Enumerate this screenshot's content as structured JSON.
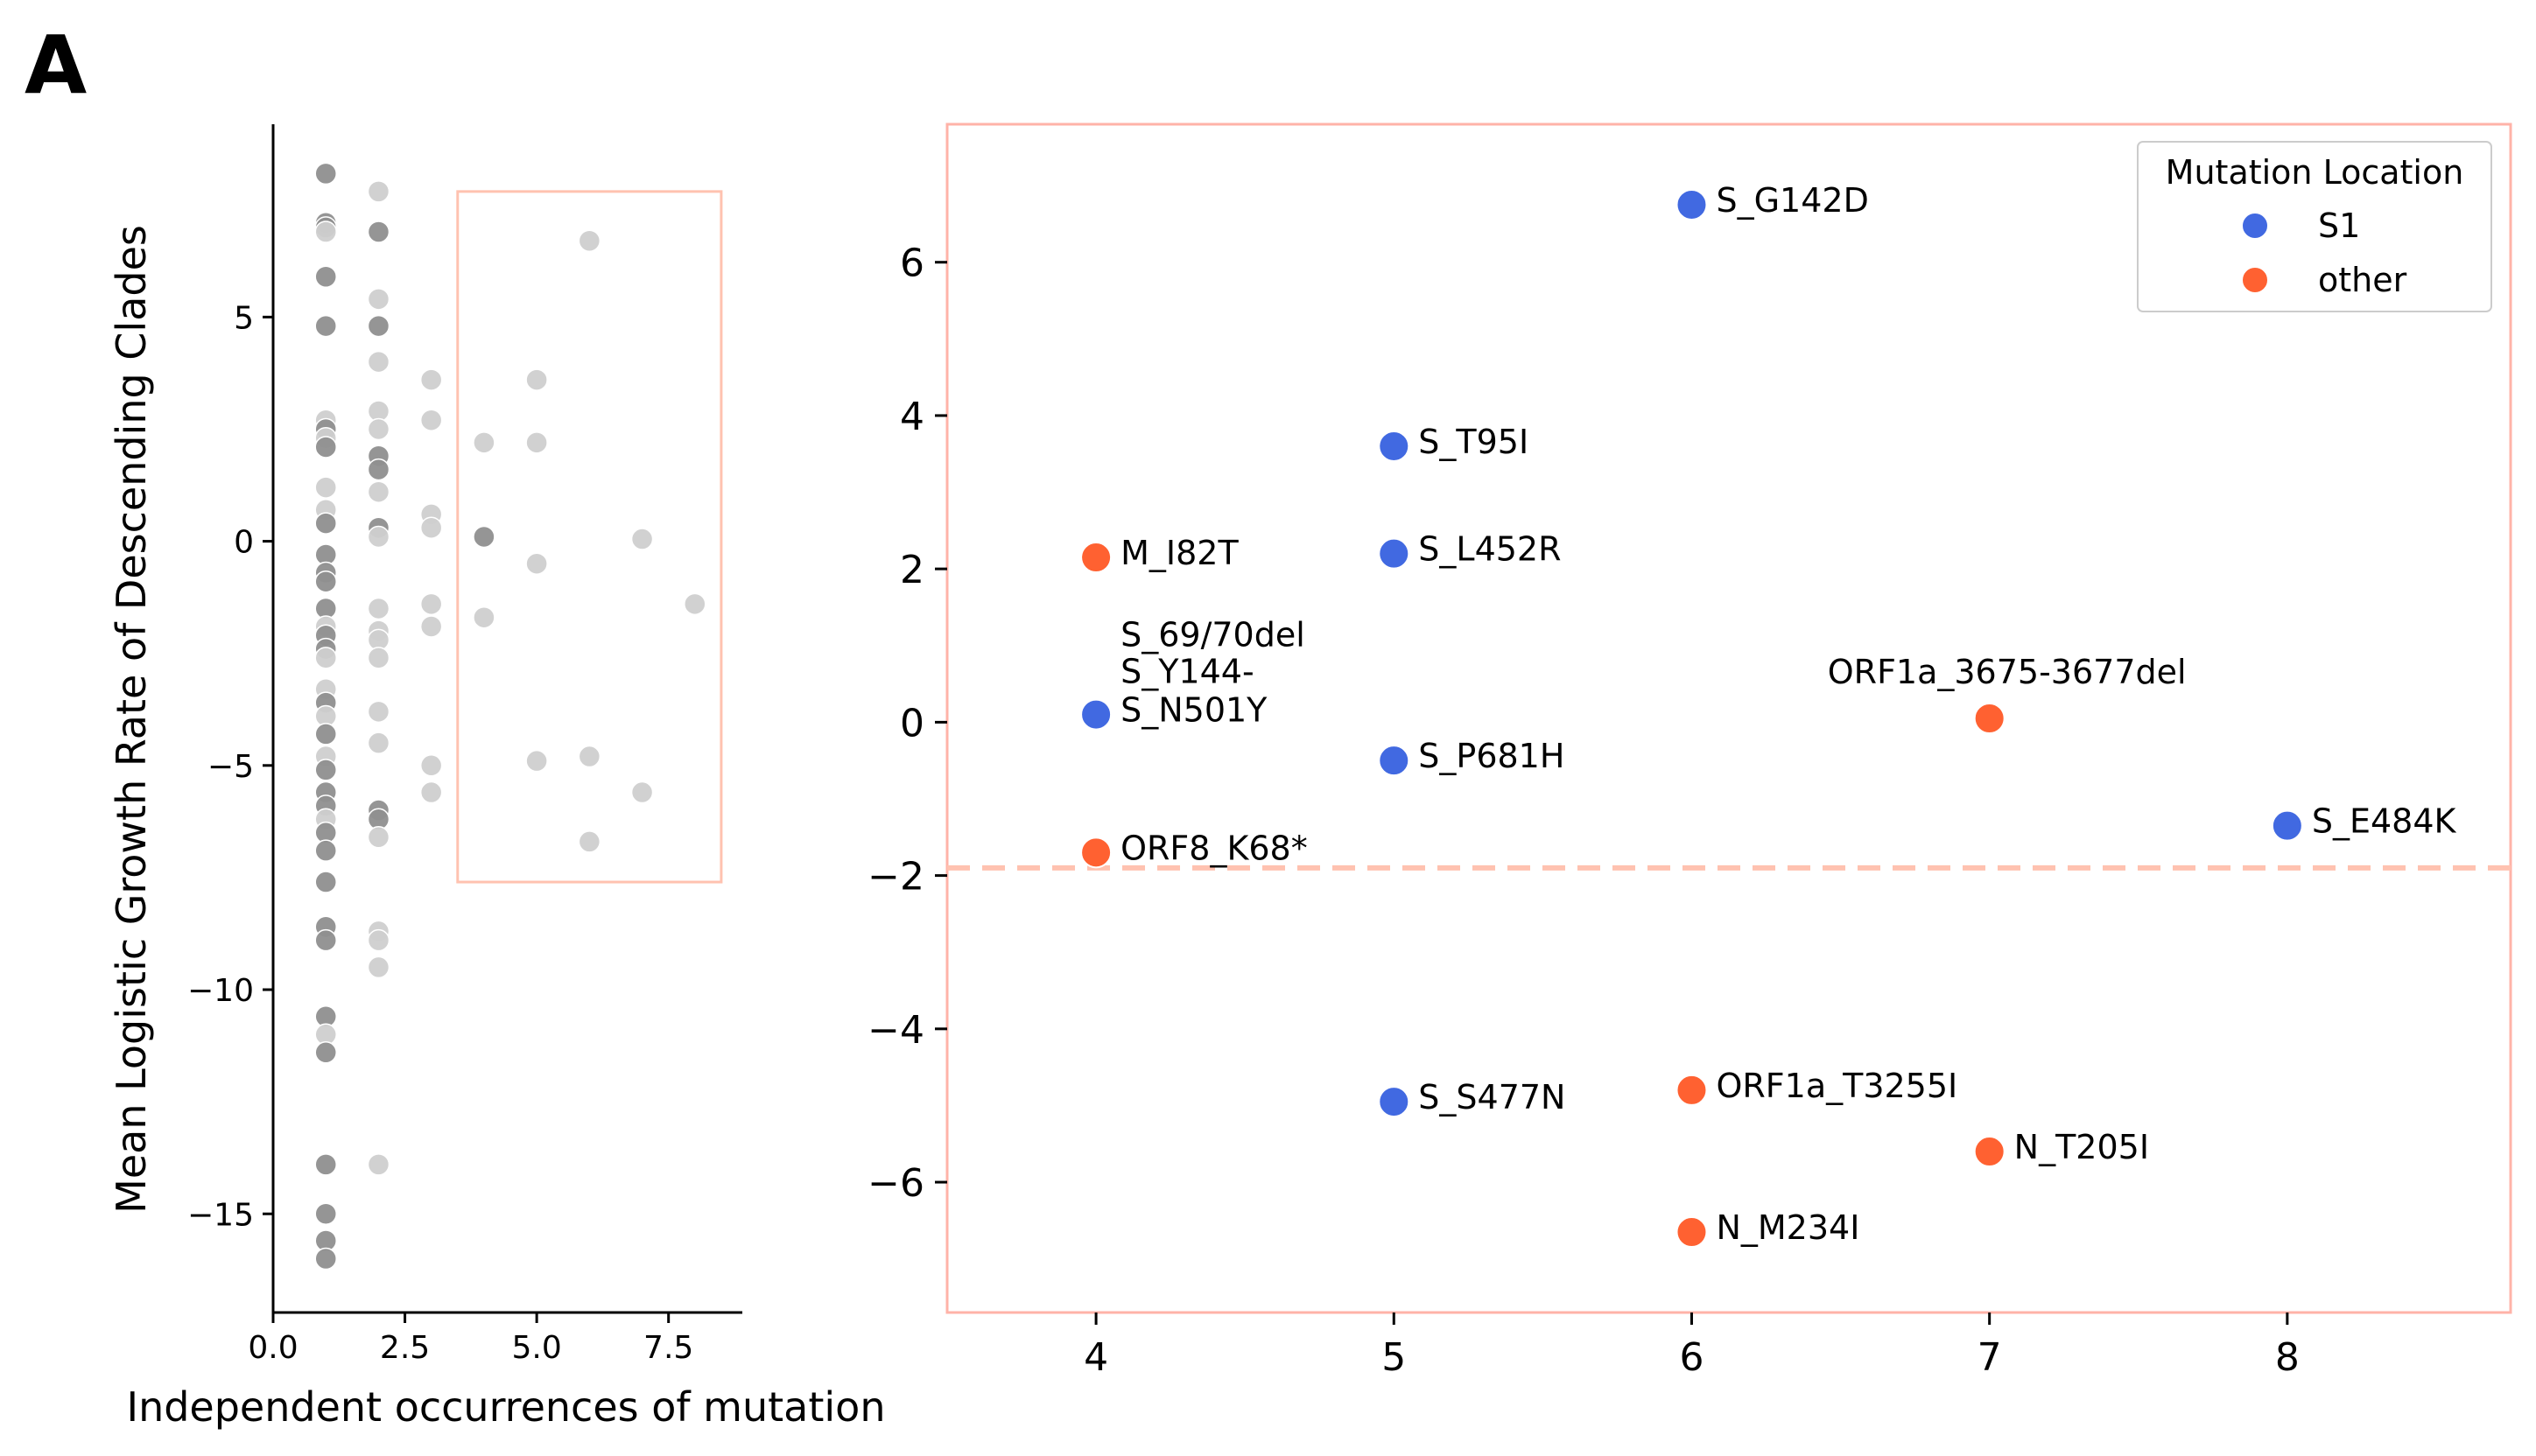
{
  "panel_label": "A",
  "colors": {
    "S1": "#4169e1",
    "other": "#ff6131",
    "highlight": "#ffc2b0",
    "right_frame": "#ffb3a8",
    "dark_point": "#8f8f8f",
    "light_point": "#cfcfcf"
  },
  "chart_data": [
    {
      "type": "scatter",
      "xlabel": "Independent occurrences of mutation",
      "ylabel": "Mean Logistic Growth Rate of Descending Clades",
      "xlim": [
        0,
        8.9
      ],
      "ylim": [
        -17.2,
        9.3
      ],
      "xticks": [
        0,
        2.5,
        5,
        7.5
      ],
      "xtick_labels": [
        "0.0",
        "2.5",
        "5.0",
        "7.5"
      ],
      "yticks": [
        5,
        0,
        -5,
        -10,
        -15
      ],
      "ytick_labels": [
        "5",
        "0",
        "−5",
        "−10",
        "−15"
      ],
      "highlight_box": {
        "x": [
          3.5,
          8.5
        ],
        "y": [
          -7.6,
          7.8
        ]
      },
      "points": [
        {
          "x": 1,
          "y": 8.2,
          "g": "d"
        },
        {
          "x": 1,
          "y": 7.1,
          "g": "d"
        },
        {
          "x": 1,
          "y": 7.0,
          "g": "d"
        },
        {
          "x": 1,
          "y": 6.9,
          "g": "l"
        },
        {
          "x": 1,
          "y": 5.9,
          "g": "d"
        },
        {
          "x": 1,
          "y": 4.8,
          "g": "d"
        },
        {
          "x": 1,
          "y": 2.7,
          "g": "l"
        },
        {
          "x": 1,
          "y": 2.5,
          "g": "d"
        },
        {
          "x": 1,
          "y": 2.3,
          "g": "l"
        },
        {
          "x": 1,
          "y": 2.1,
          "g": "d"
        },
        {
          "x": 1,
          "y": 1.2,
          "g": "l"
        },
        {
          "x": 1,
          "y": 0.7,
          "g": "l"
        },
        {
          "x": 1,
          "y": 0.4,
          "g": "d"
        },
        {
          "x": 1,
          "y": -0.3,
          "g": "d"
        },
        {
          "x": 1,
          "y": -0.7,
          "g": "d"
        },
        {
          "x": 1,
          "y": -0.9,
          "g": "d"
        },
        {
          "x": 1,
          "y": -1.5,
          "g": "d"
        },
        {
          "x": 1,
          "y": -1.9,
          "g": "l"
        },
        {
          "x": 1,
          "y": -2.1,
          "g": "d"
        },
        {
          "x": 1,
          "y": -2.4,
          "g": "d"
        },
        {
          "x": 1,
          "y": -2.6,
          "g": "l"
        },
        {
          "x": 1,
          "y": -3.3,
          "g": "l"
        },
        {
          "x": 1,
          "y": -3.6,
          "g": "d"
        },
        {
          "x": 1,
          "y": -3.9,
          "g": "l"
        },
        {
          "x": 1,
          "y": -4.3,
          "g": "d"
        },
        {
          "x": 1,
          "y": -4.8,
          "g": "l"
        },
        {
          "x": 1,
          "y": -5.1,
          "g": "d"
        },
        {
          "x": 1,
          "y": -5.6,
          "g": "d"
        },
        {
          "x": 1,
          "y": -5.9,
          "g": "d"
        },
        {
          "x": 1,
          "y": -6.2,
          "g": "l"
        },
        {
          "x": 1,
          "y": -6.5,
          "g": "d"
        },
        {
          "x": 1,
          "y": -6.9,
          "g": "d"
        },
        {
          "x": 1,
          "y": -7.6,
          "g": "d"
        },
        {
          "x": 1,
          "y": -8.6,
          "g": "d"
        },
        {
          "x": 1,
          "y": -8.9,
          "g": "d"
        },
        {
          "x": 1,
          "y": -10.6,
          "g": "d"
        },
        {
          "x": 1,
          "y": -11.0,
          "g": "l"
        },
        {
          "x": 1,
          "y": -11.4,
          "g": "d"
        },
        {
          "x": 1,
          "y": -13.9,
          "g": "d"
        },
        {
          "x": 1,
          "y": -15.0,
          "g": "d"
        },
        {
          "x": 1,
          "y": -15.6,
          "g": "d"
        },
        {
          "x": 1,
          "y": -16.0,
          "g": "d"
        },
        {
          "x": 2,
          "y": 7.8,
          "g": "l"
        },
        {
          "x": 2,
          "y": 6.9,
          "g": "d"
        },
        {
          "x": 2,
          "y": 5.4,
          "g": "l"
        },
        {
          "x": 2,
          "y": 4.8,
          "g": "d"
        },
        {
          "x": 2,
          "y": 4.0,
          "g": "l"
        },
        {
          "x": 2,
          "y": 2.9,
          "g": "l"
        },
        {
          "x": 2,
          "y": 2.5,
          "g": "l"
        },
        {
          "x": 2,
          "y": 1.9,
          "g": "d"
        },
        {
          "x": 2,
          "y": 1.6,
          "g": "d"
        },
        {
          "x": 2,
          "y": 1.1,
          "g": "l"
        },
        {
          "x": 2,
          "y": 0.3,
          "g": "d"
        },
        {
          "x": 2,
          "y": 0.1,
          "g": "l"
        },
        {
          "x": 2,
          "y": -1.5,
          "g": "l"
        },
        {
          "x": 2,
          "y": -2.0,
          "g": "l"
        },
        {
          "x": 2,
          "y": -2.2,
          "g": "l"
        },
        {
          "x": 2,
          "y": -2.6,
          "g": "l"
        },
        {
          "x": 2,
          "y": -3.8,
          "g": "l"
        },
        {
          "x": 2,
          "y": -4.5,
          "g": "l"
        },
        {
          "x": 2,
          "y": -6.0,
          "g": "d"
        },
        {
          "x": 2,
          "y": -6.2,
          "g": "d"
        },
        {
          "x": 2,
          "y": -6.6,
          "g": "l"
        },
        {
          "x": 2,
          "y": -8.7,
          "g": "l"
        },
        {
          "x": 2,
          "y": -8.9,
          "g": "l"
        },
        {
          "x": 2,
          "y": -9.5,
          "g": "l"
        },
        {
          "x": 2,
          "y": -13.9,
          "g": "l"
        },
        {
          "x": 3,
          "y": 3.6,
          "g": "l"
        },
        {
          "x": 3,
          "y": 2.7,
          "g": "l"
        },
        {
          "x": 3,
          "y": 0.6,
          "g": "l"
        },
        {
          "x": 3,
          "y": 0.3,
          "g": "l"
        },
        {
          "x": 3,
          "y": -1.4,
          "g": "l"
        },
        {
          "x": 3,
          "y": -1.9,
          "g": "l"
        },
        {
          "x": 3,
          "y": -5.0,
          "g": "l"
        },
        {
          "x": 3,
          "y": -5.6,
          "g": "l"
        },
        {
          "x": 4,
          "y": 2.2,
          "g": "l"
        },
        {
          "x": 4,
          "y": 0.1,
          "g": "d"
        },
        {
          "x": 4,
          "y": -1.7,
          "g": "l"
        },
        {
          "x": 5,
          "y": 3.6,
          "g": "l"
        },
        {
          "x": 5,
          "y": 2.2,
          "g": "l"
        },
        {
          "x": 5,
          "y": -0.5,
          "g": "l"
        },
        {
          "x": 5,
          "y": -4.9,
          "g": "l"
        },
        {
          "x": 6,
          "y": 6.7,
          "g": "l"
        },
        {
          "x": 6,
          "y": -4.8,
          "g": "l"
        },
        {
          "x": 6,
          "y": -6.7,
          "g": "l"
        },
        {
          "x": 7,
          "y": 0.05,
          "g": "l"
        },
        {
          "x": 7,
          "y": -5.6,
          "g": "l"
        },
        {
          "x": 8,
          "y": -1.4,
          "g": "l"
        }
      ]
    },
    {
      "type": "scatter",
      "xlim": [
        3.5,
        8.75
      ],
      "ylim": [
        -7.7,
        7.8
      ],
      "xticks": [
        4,
        5,
        6,
        7,
        8
      ],
      "xtick_labels": [
        "4",
        "5",
        "6",
        "7",
        "8"
      ],
      "yticks": [
        6,
        4,
        2,
        0,
        -2,
        -4,
        -6
      ],
      "ytick_labels": [
        "6",
        "4",
        "2",
        "0",
        "−2",
        "−4",
        "−6"
      ],
      "hline": -1.9,
      "legend": {
        "title": "Mutation Location",
        "position": "top-right",
        "entries": [
          {
            "label": "S1",
            "color": "#4169e1"
          },
          {
            "label": "other",
            "color": "#ff6131"
          }
        ]
      },
      "points": [
        {
          "x": 6,
          "y": 6.75,
          "group": "S1",
          "label": "S_G142D"
        },
        {
          "x": 5,
          "y": 3.6,
          "group": "S1",
          "label": "S_T95I"
        },
        {
          "x": 5,
          "y": 2.2,
          "group": "S1",
          "label": "S_L452R"
        },
        {
          "x": 4,
          "y": 2.15,
          "group": "other",
          "label": "M_I82T"
        },
        {
          "x": 4,
          "y": 0.1,
          "group": "S1",
          "label": "S_N501Y"
        },
        {
          "x": 5,
          "y": -0.5,
          "group": "S1",
          "label": "S_P681H"
        },
        {
          "x": 7,
          "y": 0.05,
          "group": "other",
          "label": "ORF1a_3675-3677del"
        },
        {
          "x": 8,
          "y": -1.35,
          "group": "S1",
          "label": "S_E484K"
        },
        {
          "x": 4,
          "y": -1.7,
          "group": "other",
          "label": "ORF8_K68*"
        },
        {
          "x": 5,
          "y": -4.95,
          "group": "S1",
          "label": "S_S477N"
        },
        {
          "x": 6,
          "y": -4.8,
          "group": "other",
          "label": "ORF1a_T3255I"
        },
        {
          "x": 7,
          "y": -5.6,
          "group": "other",
          "label": "N_T205I"
        },
        {
          "x": 6,
          "y": -6.65,
          "group": "other",
          "label": "N_M234I"
        }
      ],
      "extra_labels": [
        {
          "x": 4,
          "y": 0.1,
          "text": "S_69/70del"
        },
        {
          "x": 4,
          "y": 0.1,
          "text": "S_Y144-"
        }
      ]
    }
  ]
}
